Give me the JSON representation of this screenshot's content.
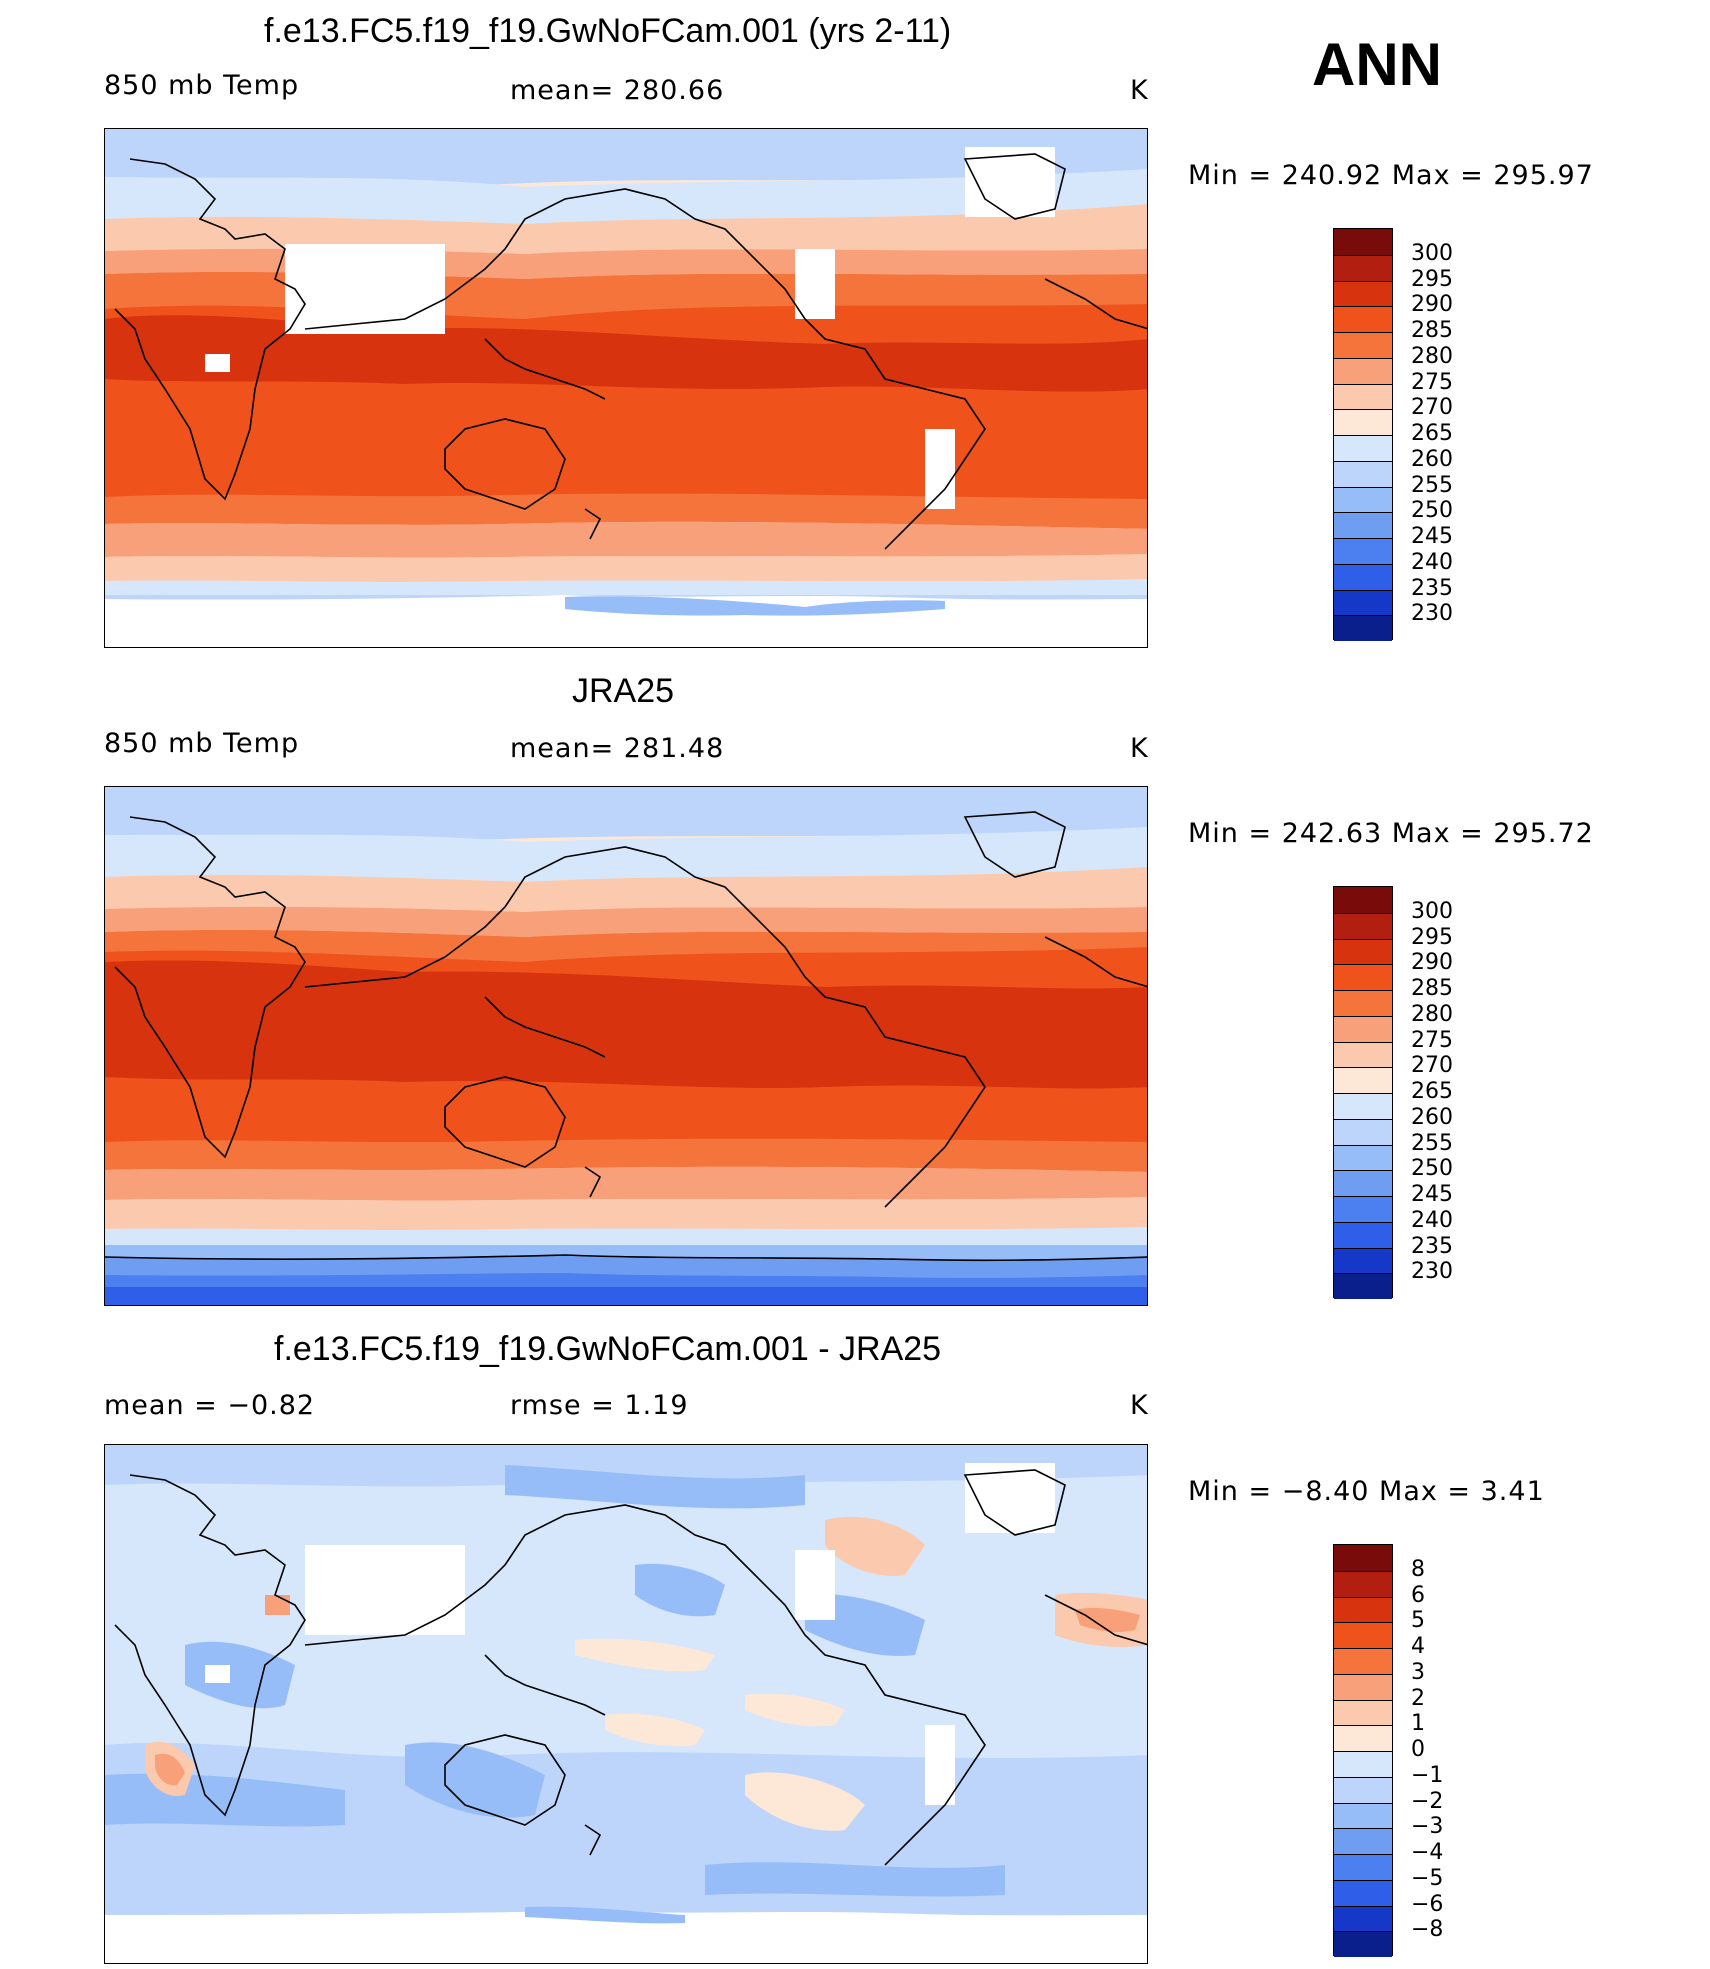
{
  "season": "ANN",
  "panels": [
    {
      "title": "f.e13.FC5.f19_f19.GwNoFCam.001 (yrs 2-11)",
      "left_label": "850 mb Temp",
      "center_label": "mean=  280.66",
      "units": "K",
      "min_max": "Min  =  240.92  Max  =  295.97",
      "colorbar_labels": [
        "300",
        "295",
        "290",
        "285",
        "280",
        "275",
        "270",
        "265",
        "260",
        "255",
        "250",
        "245",
        "240",
        "235",
        "230"
      ]
    },
    {
      "title": "JRA25",
      "left_label": "850 mb Temp",
      "center_label": "mean=  281.48",
      "units": "K",
      "min_max": "Min  =  242.63  Max  =  295.72",
      "colorbar_labels": [
        "300",
        "295",
        "290",
        "285",
        "280",
        "275",
        "270",
        "265",
        "260",
        "255",
        "250",
        "245",
        "240",
        "235",
        "230"
      ]
    },
    {
      "title": "f.e13.FC5.f19_f19.GwNoFCam.001 - JRA25",
      "left_label": "mean  =    −0.82",
      "center_label": "rmse  =     1.19",
      "units": "K",
      "min_max": "Min  =    −8.40  Max  =      3.41",
      "colorbar_labels": [
        "8",
        "6",
        "5",
        "4",
        "3",
        "2",
        "1",
        "0",
        "−1",
        "−2",
        "−3",
        "−4",
        "−5",
        "−6",
        "−8"
      ]
    }
  ],
  "colors": {
    "temp_scale": [
      "#7a0b0b",
      "#b21e10",
      "#d7330f",
      "#f0521c",
      "#f4743c",
      "#f8a07a",
      "#fbc9ad",
      "#fde8d8",
      "#d6e6fb",
      "#bdd5fb",
      "#97bdf8",
      "#6f9df2",
      "#4c7ff0",
      "#2f5ee8",
      "#1638c8",
      "#0a1f8c"
    ],
    "diff_scale": [
      "#7a0b0b",
      "#b21e10",
      "#d7330f",
      "#f0521c",
      "#f4743c",
      "#f8a07a",
      "#fbc9ad",
      "#fde8d8",
      "#d6e6fb",
      "#bdd5fb",
      "#97bdf8",
      "#6f9df2",
      "#4c7ff0",
      "#2f5ee8",
      "#1638c8",
      "#0a1f8c"
    ]
  }
}
